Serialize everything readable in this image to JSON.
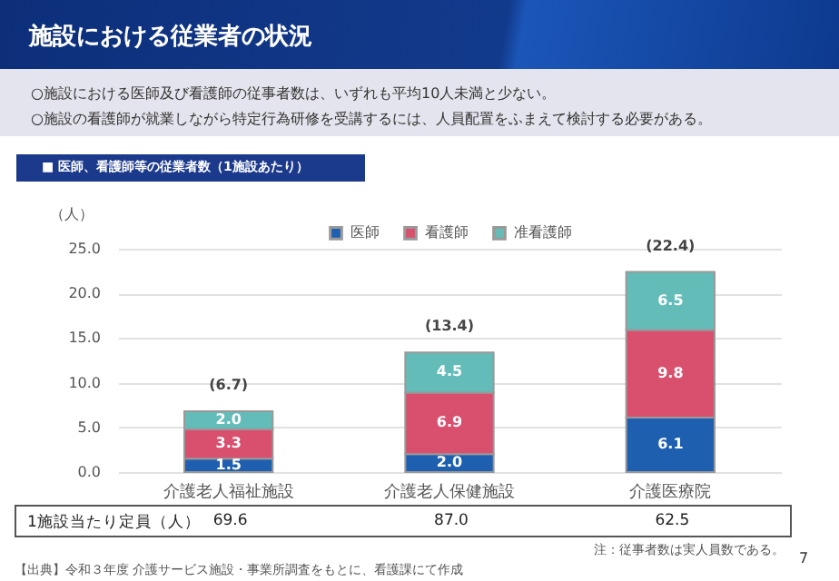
{
  "chart_data": {
    "type": "bar",
    "title": "施設における従業者の状況",
    "subtitle": "○施設における医師及び看護師の従事者数は、いずれも平均10人未満と少ない。\n○施設の看護師が就業しながら特定行為研修を受講するには、人員配置をふまえて検討する必要がある。",
    "ylabel": "（人）",
    "categories": [
      "介護老人福祉施設",
      "介護老人保健施設",
      "介護医療院"
    ],
    "series": [
      {
        "name": "医師",
        "color": "#1f5fb0",
        "values": [
          1.5,
          2.0,
          6.1
        ],
        "value_labels": [
          "1.5",
          "2.0",
          "6.1"
        ]
      },
      {
        "name": "看護師",
        "color": "#d94f6e",
        "values": [
          3.3,
          6.9,
          9.8
        ],
        "value_labels": [
          "3.3",
          "6.9",
          "9.8"
        ]
      },
      {
        "name": "准看護師",
        "color": "#63bcb8",
        "values": [
          2.0,
          4.5,
          6.5
        ],
        "value_labels": [
          "2.0",
          "4.5",
          "6.5"
        ]
      }
    ],
    "stacked": true,
    "totals": [
      "(6.7)",
      "(13.4)",
      "(22.4)"
    ],
    "ylim": [
      0,
      25
    ],
    "yticks": [
      {
        "value": 0,
        "label": "0.0"
      },
      {
        "value": 5,
        "label": "5.0"
      },
      {
        "value": 10,
        "label": "10.0"
      },
      {
        "value": 15,
        "label": "15.0"
      },
      {
        "value": 20,
        "label": "20.0"
      },
      {
        "value": 25,
        "label": "25.0"
      }
    ],
    "grid": "y",
    "legend": "top",
    "annotations": [
      "■ 医師、看護師等の従業者数（1施設あたり）",
      "1施設当たり定員（人）",
      "69.6",
      "87.0",
      "62.5",
      "注：従事者数は実人員数である。",
      "【出典】令和３年度 介護サービス施設・事業所調査をもとに、看護課にて作成",
      "7"
    ]
  }
}
